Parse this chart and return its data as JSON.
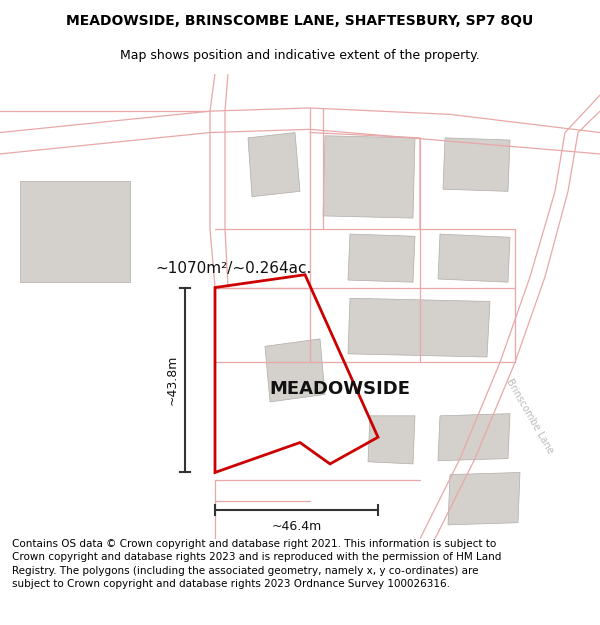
{
  "title_line1": "MEADOWSIDE, BRINSCOMBE LANE, SHAFTESBURY, SP7 8QU",
  "title_line2": "Map shows position and indicative extent of the property.",
  "property_name": "MEADOWSIDE",
  "area_text": "~1070m²/~0.264ac.",
  "width_label": "~46.4m",
  "height_label": "~43.8m",
  "road_label": "Brinscombe Lane",
  "footer_text": "Contains OS data © Crown copyright and database right 2021. This information is subject to Crown copyright and database rights 2023 and is reproduced with the permission of HM Land Registry. The polygons (including the associated geometry, namely x, y co-ordinates) are subject to Crown copyright and database rights 2023 Ordnance Survey 100026316.",
  "map_bg": "#f7f5f2",
  "road_color": "#e8a8a8",
  "boundary_color": "#e0b0b0",
  "building_color": "#d4d0cc",
  "building_edge": "#b0aca8",
  "plot_outline_color": "#cc0000",
  "title_fontsize": 10,
  "subtitle_fontsize": 9,
  "footer_fontsize": 7.5
}
